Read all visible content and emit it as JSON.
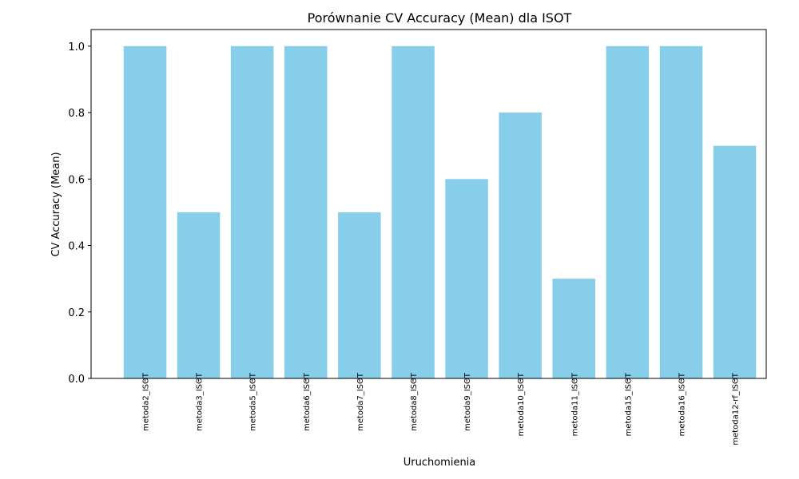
{
  "chart_data": {
    "type": "bar",
    "title": "Porównanie CV Accuracy (Mean) dla ISOT",
    "xlabel": "Uruchomienia",
    "ylabel": "CV Accuracy (Mean)",
    "categories": [
      "metoda2_ISOT",
      "metoda3_ISOT",
      "metoda5_ISOT",
      "metoda6_ISOT",
      "metoda7_ISOT",
      "metoda8_ISOT",
      "metoda9_ISOT",
      "metoda10_ISOT",
      "metoda11_ISOT",
      "metoda15_ISOT",
      "metoda16_ISOT",
      "metoda12-rf_ISOT"
    ],
    "values": [
      1.0,
      0.5,
      1.0,
      1.0,
      0.5,
      1.0,
      0.6,
      0.8,
      0.3,
      1.0,
      1.0,
      0.7
    ],
    "ylim": [
      0,
      1.05
    ],
    "yticks": [
      "0.0",
      "0.2",
      "0.4",
      "0.6",
      "0.8",
      "1.0"
    ],
    "bar_color": "#87ceeb",
    "grid": false,
    "legend": false
  }
}
